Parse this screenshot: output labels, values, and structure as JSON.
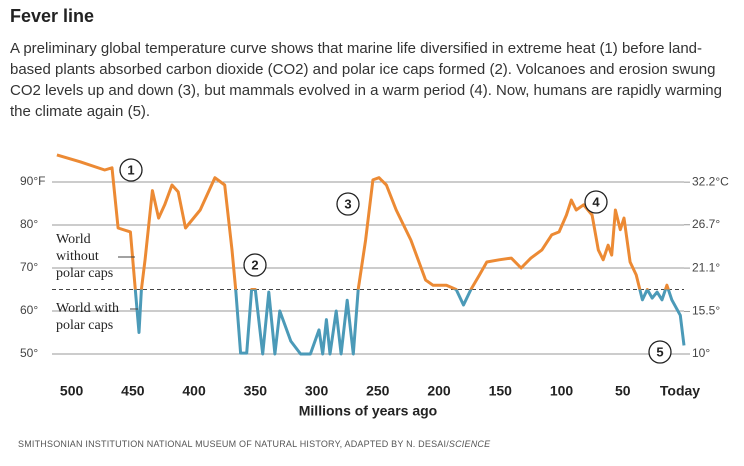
{
  "chart_data": {
    "type": "line",
    "title": "Fever line",
    "subtitle": "A preliminary global temperature curve shows that marine life diversified in extreme heat (1) before land-based plants absorbed carbon dioxide (CO2) and polar ice caps formed (2). Volcanoes and erosion swung CO2 levels up and down (3), but mammals evolved in a warm period (4). Now, humans are rapidly warming the climate again (5).",
    "xlabel": "Millions of years ago",
    "source": "SMITHSONIAN INSTITUTION NATIONAL MUSEUM OF NATURAL HISTORY, ADAPTED BY N. DESAI/",
    "source_italic": "SCIENCE",
    "xlim": [
      516,
      0
    ],
    "xticks": [
      500,
      450,
      400,
      350,
      300,
      250,
      200,
      150,
      100,
      50,
      {
        "value": 0,
        "label": "Today"
      }
    ],
    "ylim": [
      48,
      97
    ],
    "yticks": [
      {
        "value": 90,
        "label": "90°F"
      },
      {
        "value": 80,
        "label": "80°"
      },
      {
        "value": 70,
        "label": "70°"
      },
      {
        "value": 60,
        "label": "60°"
      },
      {
        "value": 50,
        "label": "50°"
      }
    ],
    "y2lim": [
      8.89,
      36.11
    ],
    "y2ticks": [
      {
        "value": 32.2,
        "label": "32.2°C"
      },
      {
        "value": 26.7,
        "label": "26.7°"
      },
      {
        "value": 21.1,
        "label": "21.1°"
      },
      {
        "value": 15.5,
        "label": "15.5°"
      },
      {
        "value": 10,
        "label": "10°"
      }
    ],
    "grid": true,
    "polar_cap_threshold": 65,
    "color_above": "#ec8a34",
    "color_below": "#4b9ab8",
    "region_labels": {
      "without": [
        "World",
        "without",
        "polar caps"
      ],
      "with": [
        "World with",
        "polar caps"
      ]
    },
    "annotations": [
      "1",
      "2",
      "3",
      "4",
      "5"
    ],
    "x": [
      512,
      493,
      473,
      467,
      462,
      452,
      448,
      445,
      443,
      440,
      434,
      429,
      424,
      418,
      413,
      407,
      395,
      383,
      375,
      369,
      366,
      362,
      357,
      353,
      350,
      344,
      339,
      334,
      330,
      321,
      313,
      305,
      298,
      295,
      292,
      289,
      284,
      280,
      275,
      270,
      266,
      260,
      254,
      249,
      243,
      235,
      223,
      211,
      205,
      194,
      186,
      180,
      174,
      167,
      161,
      151,
      141,
      133,
      125,
      116,
      108,
      102,
      96,
      92,
      88,
      82,
      75,
      70,
      66,
      62,
      59,
      56,
      52,
      49,
      44,
      39,
      34,
      30,
      26,
      22,
      18,
      14,
      10,
      3,
      0
    ],
    "values": [
      96.3,
      94.7,
      92.8,
      93.3,
      79.3,
      78.4,
      65,
      55,
      65,
      72,
      88,
      81.6,
      84.7,
      89.3,
      87.7,
      79.3,
      83.5,
      91,
      89.3,
      74.2,
      65,
      50.2,
      50.2,
      65,
      65,
      50,
      64.4,
      50,
      60,
      53,
      50,
      50,
      55.6,
      50,
      58,
      50,
      60,
      50,
      62.5,
      50,
      65,
      76.5,
      90.5,
      91,
      89.3,
      83.5,
      76.5,
      67.2,
      66,
      66,
      65,
      61.4,
      65,
      68.4,
      71.4,
      71.9,
      72.3,
      70,
      72.3,
      74.2,
      77.7,
      78.4,
      82.3,
      85.8,
      83.5,
      84.7,
      82.3,
      74.2,
      71.9,
      75.3,
      73,
      83.5,
      78.9,
      81.6,
      71.4,
      68.4,
      62.6,
      65,
      63,
      64.4,
      62.6,
      66,
      62.6,
      59,
      52
    ]
  }
}
